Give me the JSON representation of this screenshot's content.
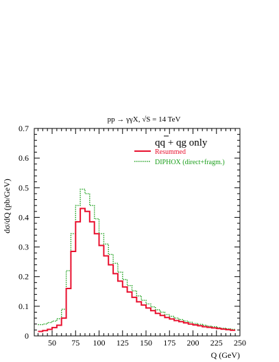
{
  "chart_data": {
    "type": "step",
    "title": "pp → γγX, √S = 14 TeV",
    "annotation": "qq̄ + qg only",
    "xlabel": "Q (GeV)",
    "ylabel": "dσ/dQ (pb/GeV)",
    "xlim": [
      31,
      250
    ],
    "ylim": [
      0,
      0.7
    ],
    "xticks": [
      50,
      75,
      100,
      125,
      150,
      175,
      200,
      225,
      250
    ],
    "xtick_labels": [
      "50",
      "75",
      "100",
      "125",
      "150",
      "175",
      "200",
      "225",
      "250"
    ],
    "yticks": [
      0,
      0.1,
      0.2,
      0.3,
      0.4,
      0.5,
      0.6,
      0.7
    ],
    "ytick_labels": [
      "0",
      "0.1",
      "0.2",
      "0.3",
      "0.4",
      "0.5",
      "0.6",
      "0.7"
    ],
    "bin_edges": [
      35,
      40,
      45,
      50,
      55,
      60,
      65,
      70,
      75,
      80,
      85,
      90,
      95,
      100,
      105,
      110,
      115,
      120,
      125,
      130,
      135,
      140,
      145,
      150,
      155,
      160,
      165,
      170,
      175,
      180,
      185,
      190,
      195,
      200,
      205,
      210,
      215,
      220,
      225,
      230,
      235,
      240,
      245
    ],
    "series": [
      {
        "name": "Resummed",
        "color": "#e8102e",
        "style": "solid",
        "values": [
          0.015,
          0.018,
          0.022,
          0.028,
          0.036,
          0.06,
          0.16,
          0.285,
          0.385,
          0.43,
          0.42,
          0.385,
          0.345,
          0.305,
          0.27,
          0.24,
          0.21,
          0.185,
          0.165,
          0.148,
          0.13,
          0.115,
          0.104,
          0.094,
          0.085,
          0.076,
          0.069,
          0.062,
          0.057,
          0.052,
          0.048,
          0.044,
          0.04,
          0.037,
          0.034,
          0.031,
          0.029,
          0.027,
          0.025,
          0.023,
          0.021,
          0.019
        ]
      },
      {
        "name": "DIPHOX (direct+fragm.)",
        "color": "#1a9e1a",
        "style": "dotted",
        "values": [
          0.038,
          0.04,
          0.045,
          0.05,
          0.058,
          0.09,
          0.22,
          0.345,
          0.44,
          0.495,
          0.48,
          0.44,
          0.395,
          0.345,
          0.31,
          0.275,
          0.245,
          0.215,
          0.19,
          0.17,
          0.152,
          0.135,
          0.12,
          0.108,
          0.098,
          0.088,
          0.08,
          0.072,
          0.066,
          0.06,
          0.055,
          0.05,
          0.046,
          0.042,
          0.039,
          0.036,
          0.033,
          0.031,
          0.028,
          0.026,
          0.024,
          0.022
        ]
      }
    ]
  }
}
